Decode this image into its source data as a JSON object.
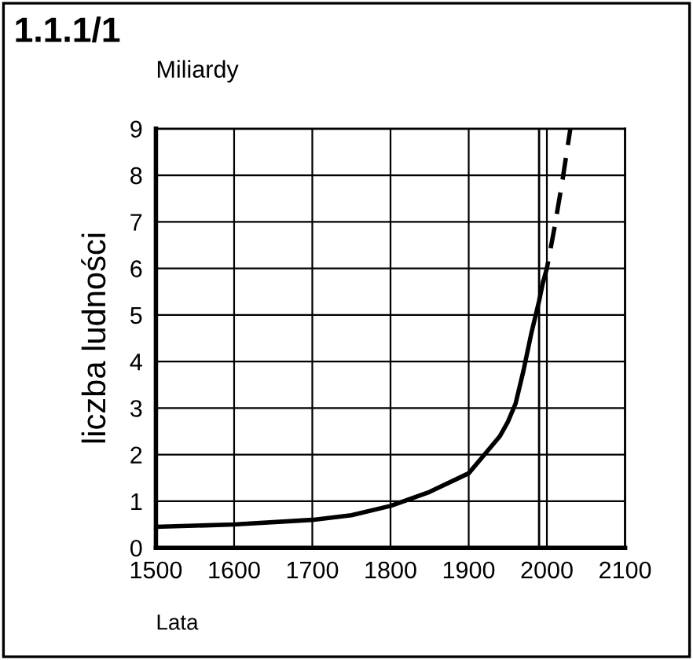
{
  "chart_data": {
    "type": "line",
    "title": "1.1.1/1",
    "ylabel": "liczba ludności",
    "xlabel": "Lata",
    "annotations": [
      "Miliardy"
    ],
    "xlim": [
      1500,
      2100
    ],
    "xticks": [
      1500,
      1600,
      1700,
      1800,
      1900,
      2000,
      2100
    ],
    "ylim": [
      0,
      9
    ],
    "yticks": [
      0,
      1,
      2,
      3,
      4,
      5,
      6,
      7,
      8,
      9
    ],
    "grid": true,
    "series": [
      {
        "color": "#000000",
        "line_style": "solid",
        "x": [
          1500,
          1600,
          1700,
          1750,
          1800,
          1850,
          1900,
          1920,
          1940,
          1950,
          1960,
          1970,
          1980,
          1990,
          1995
        ],
        "values": [
          0.45,
          0.5,
          0.6,
          0.7,
          0.9,
          1.2,
          1.6,
          2.0,
          2.4,
          2.7,
          3.1,
          3.8,
          4.6,
          5.3,
          5.7
        ]
      },
      {
        "color": "#000000",
        "line_style": "dashed",
        "x": [
          1995,
          2000,
          2010,
          2020,
          2030
        ],
        "values": [
          5.7,
          6.0,
          6.9,
          7.9,
          9.0
        ]
      }
    ],
    "ref_lines": [
      {
        "axis": "x",
        "value": 1990,
        "color": "#000000",
        "line_style": "solid"
      }
    ]
  }
}
